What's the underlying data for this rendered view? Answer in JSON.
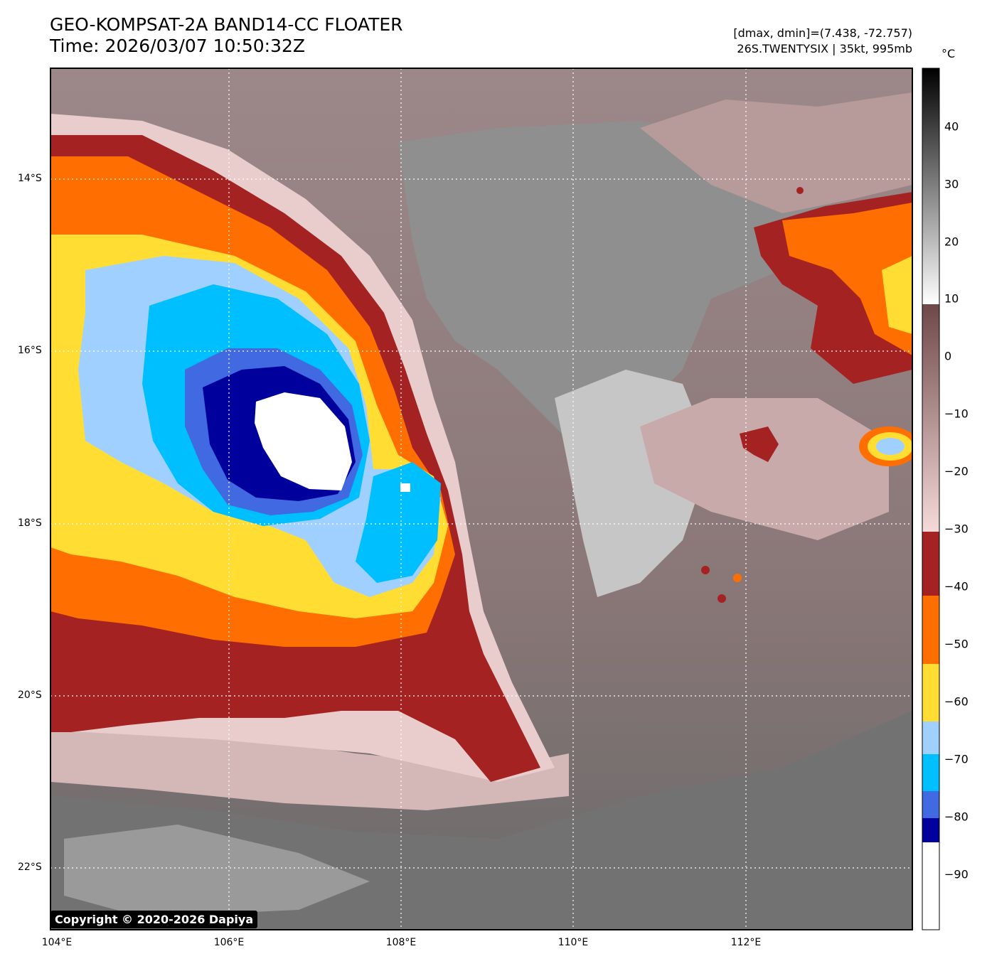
{
  "title": {
    "line1": "GEO-KOMPSAT-2A BAND14-CC FLOATER",
    "line2": "Time: 2026/03/07 10:50:32Z"
  },
  "meta": {
    "range": "[dmax, dmin]=(7.438, -72.757)",
    "storm": "26S.TWENTYSIX | 35kt, 995mb"
  },
  "lat_ticks": [
    "14°S",
    "16°S",
    "18°S",
    "20°S",
    "22°S"
  ],
  "lon_ticks": [
    "104°E",
    "106°E",
    "108°E",
    "110°E",
    "112°E"
  ],
  "colorbar": {
    "unit": "°C",
    "ticks": [
      "40",
      "30",
      "20",
      "10",
      "0",
      "−10",
      "−20",
      "−30",
      "−40",
      "−50",
      "−60",
      "−70",
      "−80",
      "−90"
    ],
    "colors": {
      "gray_scale": [
        "#ffffff",
        "#000000"
      ],
      "brown_pink": [
        "#f6dada",
        "#6e4848"
      ],
      "dark_red": "#a52222",
      "orange": "#ff6e00",
      "yellow": "#ffdd33",
      "light_blue": "#a0d0ff",
      "cyan": "#00bfff",
      "royal_blue": "#4169e1",
      "navy": "#00009c",
      "white": "#ffffff"
    }
  },
  "copyright": "Copyright © 2020-2026 Dapiya"
}
